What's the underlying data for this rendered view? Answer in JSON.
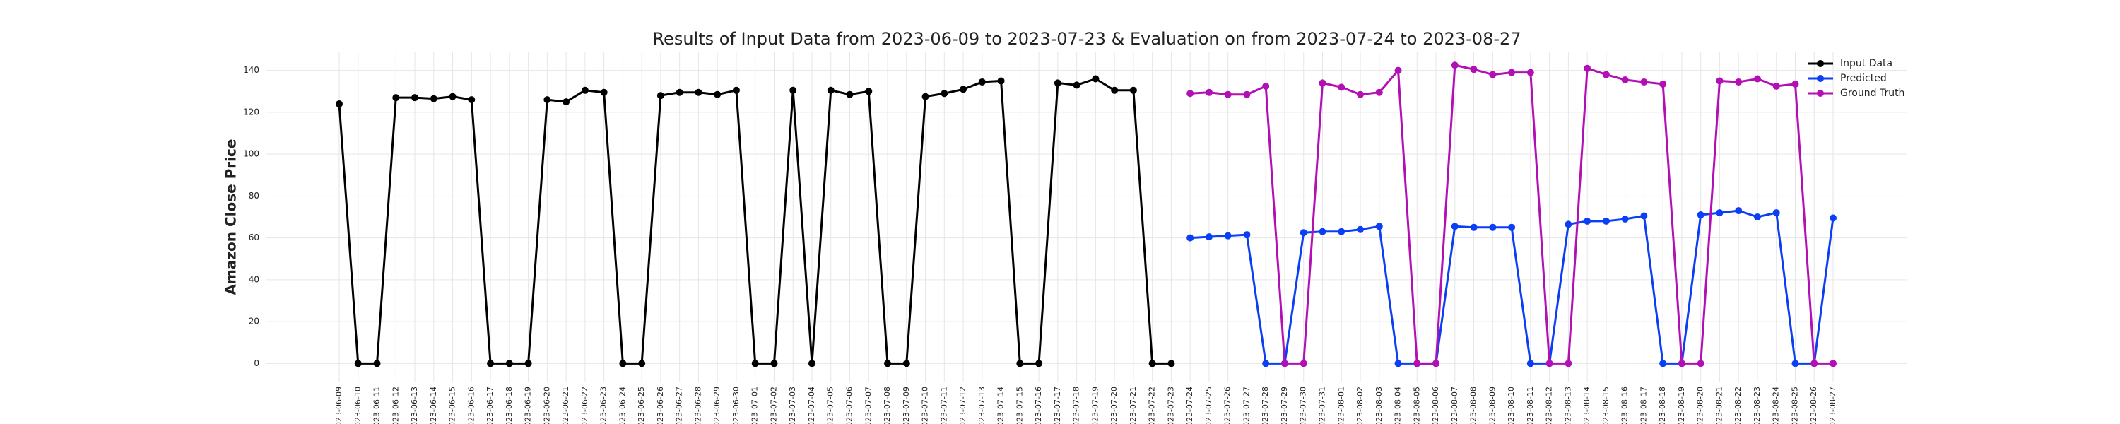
{
  "chart_data": {
    "type": "line",
    "title": "Results of Input Data from 2023-06-09 to 2023-07-23 & Evaluation on from 2023-07-24 to 2023-08-27",
    "y_label": "Amazon Close Price",
    "x": [
      "2023-06-09",
      "2023-06-10",
      "2023-06-11",
      "2023-06-12",
      "2023-06-13",
      "2023-06-14",
      "2023-06-15",
      "2023-06-16",
      "2023-06-17",
      "2023-06-18",
      "2023-06-19",
      "2023-06-20",
      "2023-06-21",
      "2023-06-22",
      "2023-06-23",
      "2023-06-24",
      "2023-06-25",
      "2023-06-26",
      "2023-06-27",
      "2023-06-28",
      "2023-06-29",
      "2023-06-30",
      "2023-07-01",
      "2023-07-02",
      "2023-07-03",
      "2023-07-04",
      "2023-07-05",
      "2023-07-06",
      "2023-07-07",
      "2023-07-08",
      "2023-07-09",
      "2023-07-10",
      "2023-07-11",
      "2023-07-12",
      "2023-07-13",
      "2023-07-14",
      "2023-07-15",
      "2023-07-16",
      "2023-07-17",
      "2023-07-18",
      "2023-07-19",
      "2023-07-20",
      "2023-07-21",
      "2023-07-22",
      "2023-07-23",
      "2023-07-24",
      "2023-07-25",
      "2023-07-26",
      "2023-07-27",
      "2023-07-28",
      "2023-07-29",
      "2023-07-30",
      "2023-07-31",
      "2023-08-01",
      "2023-08-02",
      "2023-08-03",
      "2023-08-04",
      "2023-08-05",
      "2023-08-06",
      "2023-08-07",
      "2023-08-08",
      "2023-08-09",
      "2023-08-10",
      "2023-08-11",
      "2023-08-12",
      "2023-08-13",
      "2023-08-14",
      "2023-08-15",
      "2023-08-16",
      "2023-08-17",
      "2023-08-18",
      "2023-08-19",
      "2023-08-20",
      "2023-08-21",
      "2023-08-22",
      "2023-08-23",
      "2023-08-24",
      "2023-08-25",
      "2023-08-26",
      "2023-08-27"
    ],
    "series": [
      {
        "name": "Input Data",
        "color": "#000000",
        "values": [
          124,
          0,
          0,
          127,
          127,
          126.5,
          127.5,
          126,
          0,
          0,
          0,
          126,
          125,
          130.5,
          129.5,
          0,
          0,
          128,
          129.5,
          129.5,
          128.5,
          130.5,
          0,
          0,
          130.5,
          0,
          130.5,
          128.5,
          130,
          0,
          0,
          127.5,
          129,
          131,
          134.5,
          135,
          0,
          0,
          134,
          133,
          136,
          130.5,
          130.5,
          0,
          0,
          null,
          null,
          null,
          null,
          null,
          null,
          null,
          null,
          null,
          null,
          null,
          null,
          null,
          null,
          null,
          null,
          null,
          null,
          null,
          null,
          null,
          null,
          null,
          null,
          null,
          null,
          null,
          null,
          null,
          null,
          null,
          null,
          null,
          null,
          null
        ]
      },
      {
        "name": "Predicted",
        "color": "#0b3ff5",
        "values": [
          null,
          null,
          null,
          null,
          null,
          null,
          null,
          null,
          null,
          null,
          null,
          null,
          null,
          null,
          null,
          null,
          null,
          null,
          null,
          null,
          null,
          null,
          null,
          null,
          null,
          null,
          null,
          null,
          null,
          null,
          null,
          null,
          null,
          null,
          null,
          null,
          null,
          null,
          null,
          null,
          null,
          null,
          null,
          null,
          null,
          60,
          60.5,
          61,
          61.5,
          0,
          0,
          62.5,
          63,
          63,
          64,
          65.5,
          0,
          0,
          0,
          65.5,
          65,
          65,
          65,
          0,
          0,
          66.5,
          68,
          68,
          69,
          70.5,
          0,
          0,
          71,
          72,
          73,
          70,
          72,
          0,
          0,
          69.5
        ]
      },
      {
        "name": "Ground Truth",
        "color": "#b20fb5",
        "values": [
          null,
          null,
          null,
          null,
          null,
          null,
          null,
          null,
          null,
          null,
          null,
          null,
          null,
          null,
          null,
          null,
          null,
          null,
          null,
          null,
          null,
          null,
          null,
          null,
          null,
          null,
          null,
          null,
          null,
          null,
          null,
          null,
          null,
          null,
          null,
          null,
          null,
          null,
          null,
          null,
          null,
          null,
          null,
          null,
          null,
          129,
          129.5,
          128.5,
          128.5,
          132.5,
          0,
          0,
          134,
          132,
          128.5,
          129.5,
          140,
          0,
          0,
          142.5,
          140.5,
          138,
          139,
          139,
          0,
          0,
          141,
          138,
          135.5,
          134.5,
          133.5,
          0,
          0,
          135,
          134.5,
          136,
          132.5,
          133.5,
          0,
          0
        ]
      }
    ],
    "ylim": [
      -9,
      149
    ],
    "yticks": [
      0,
      20,
      40,
      60,
      80,
      100,
      120,
      140
    ],
    "grid": true,
    "legend": "upper right"
  }
}
